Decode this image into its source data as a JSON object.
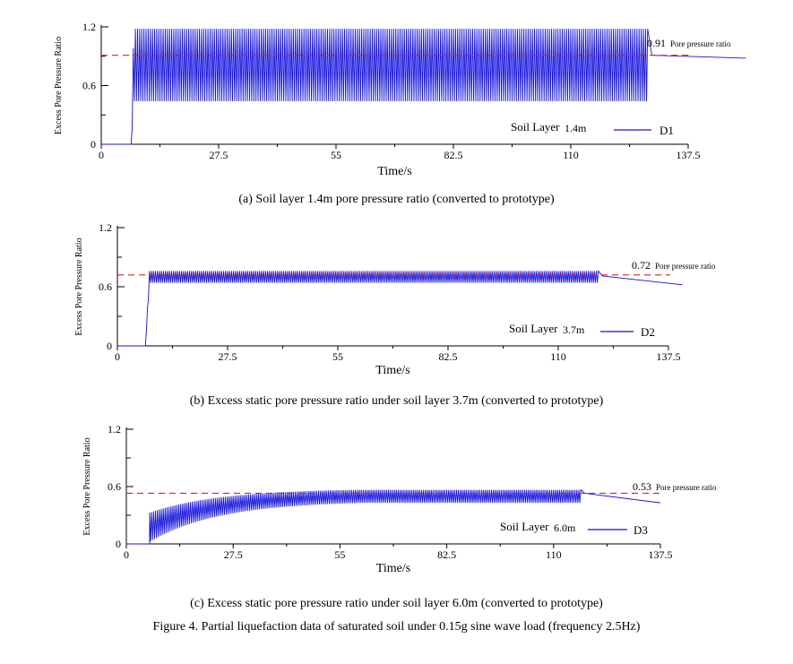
{
  "figure_caption": "Figure 4. Partial liquefaction data of saturated soil under 0.15g sine wave load (frequency 2.5Hz)",
  "colors": {
    "trace": "#1111dd",
    "reference": "#dd2222",
    "axis": "#000000"
  },
  "chart_data": [
    {
      "type": "line",
      "caption": "(a) Soil layer 1.4m pore pressure ratio (converted to prototype)",
      "xlabel": "Time/s",
      "ylabel": "Excess Pore Pressure Ratio",
      "xlim": [
        0,
        137.5
      ],
      "ylim": [
        0,
        1.2
      ],
      "x_ticks": [
        "0",
        "27.5",
        "55",
        "82.5",
        "110",
        "137.5"
      ],
      "y_ticks": [
        "0",
        "0.6",
        "1.2"
      ],
      "reference_value": 0.91,
      "reference_label": "0.91",
      "reference_text": "Pore pressure ratio",
      "legend_text": "Soil Layer",
      "legend_depth": "1.4m",
      "series": [
        {
          "name": "D1",
          "onset_time": 7,
          "rise_end_time": 7.6,
          "loading_end_time": 128,
          "end_time": 151,
          "cycle_upper": 1.18,
          "cycle_lower": 0.44,
          "post_value_start": 0.91,
          "post_value_end": 0.88
        }
      ]
    },
    {
      "type": "line",
      "caption": "(b) Excess static pore pressure ratio under soil layer 3.7m (converted to prototype)",
      "xlabel": "Time/s",
      "ylabel": "Excess Pore Pressure Ratio",
      "xlim": [
        0,
        137.5
      ],
      "ylim": [
        0,
        1.2
      ],
      "x_ticks": [
        "0",
        "27.5",
        "55",
        "82.5",
        "110",
        "137.5"
      ],
      "y_ticks": [
        "0",
        "0.6",
        "1.2"
      ],
      "reference_value": 0.72,
      "reference_label": "0.72",
      "reference_text": "Pore pressure ratio",
      "legend_text": "Soil Layer",
      "legend_depth": "3.7m",
      "series": [
        {
          "name": "D2",
          "onset_time": 7,
          "rise_end_time": 8,
          "loading_end_time": 120,
          "end_time": 141,
          "cycle_upper": 0.76,
          "cycle_lower": 0.64,
          "post_value_start": 0.71,
          "post_value_end": 0.62
        }
      ]
    },
    {
      "type": "line",
      "caption": "(c) Excess static pore pressure ratio under soil layer 6.0m (converted to prototype)",
      "xlabel": "Time/s",
      "ylabel": "Excess Pore Pressure Ratio",
      "xlim": [
        0,
        137.5
      ],
      "ylim": [
        0,
        1.2
      ],
      "x_ticks": [
        "0",
        "27.5",
        "55",
        "82.5",
        "110",
        "137.5"
      ],
      "y_ticks": [
        "0",
        "0.6",
        "1.2"
      ],
      "reference_value": 0.53,
      "reference_label": "0.53",
      "reference_text": "Pore pressure ratio",
      "legend_text": "Soil Layer",
      "legend_depth": "6.0m",
      "series": [
        {
          "name": "D3",
          "onset_time": 6,
          "rise_end_time": 60,
          "loading_end_time": 117,
          "end_time": 137.5,
          "cycle_upper": 0.57,
          "cycle_lower": 0.45,
          "post_value_start": 0.53,
          "post_value_end": 0.43
        }
      ]
    }
  ]
}
